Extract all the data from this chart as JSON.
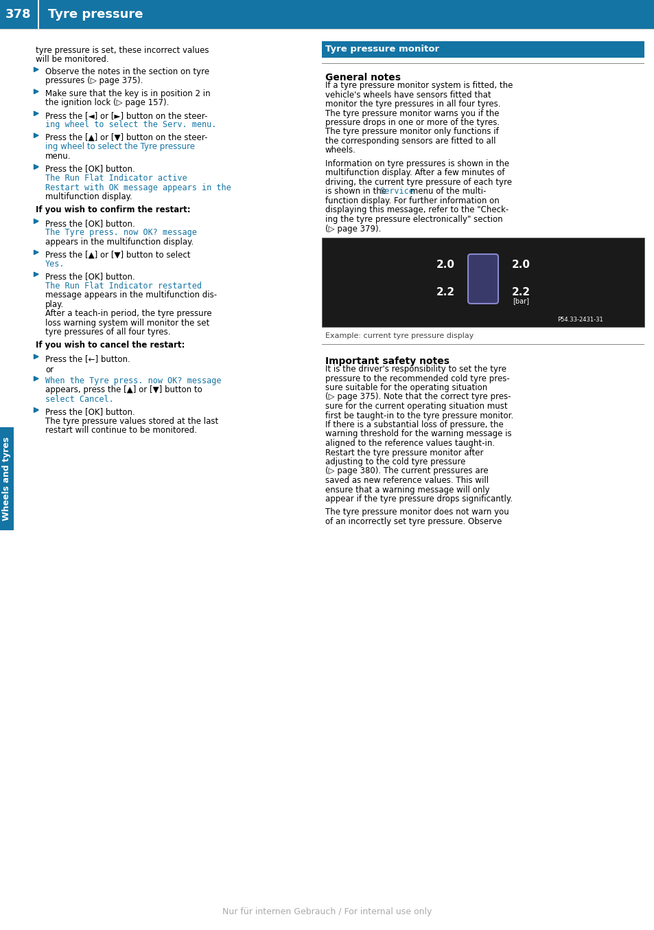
{
  "header_bg_color": "#1474a4",
  "header_text_color": "#ffffff",
  "header_page_num": "378",
  "header_title": "Tyre pressure",
  "sidebar_bg_color": "#1474a4",
  "sidebar_text": "Wheels and tyres",
  "sidebar_text_color": "#ffffff",
  "page_bg_color": "#ffffff",
  "body_text_color": "#000000",
  "teal_color": "#1474a4",
  "footer_text": "Nur für internen Gebrauch / For internal use only",
  "footer_color": "#aaaaaa",
  "left_column_text": [
    [
      "normal",
      "tyre pressure is set, these incorrect values will be monitored."
    ],
    [
      "bullet",
      "Observe the notes in the section on tyre pressures (▷ page 375)."
    ],
    [
      "bullet",
      "Make sure that the key is in position {bold}2{/bold} in the ignition lock (▷ page 157)."
    ],
    [
      "bullet",
      "Press the {box}◄{/box} or {box}►{/box} button on the steering wheel to select the {mono}Serv.{/mono} menu."
    ],
    [
      "bullet",
      "Press the {box}▲{/box} or {box}▼{/box} button on the steering wheel to select the {teal}Tyre pressure{/teal} menu."
    ],
    [
      "bullet",
      "Press the {box}OK{/box} button.\nThe {mono}Run Flat Indicator active\nRestart with OK{/mono} message appears in the multifunction display."
    ],
    [
      "bold_heading",
      "If you wish to confirm the restart:"
    ],
    [
      "bullet",
      "Press the {box}OK{/box} button.\nThe {teal}Tyre press. now OK?{/teal} message appears in the multifunction display."
    ],
    [
      "bullet",
      "Press the {box}▲{/box} or {box}▼{/box} button to select {teal}Yes{/teal}."
    ],
    [
      "bullet",
      "Press the {box}OK{/box} button.\nThe {teal}Run Flat Indicator restarted{/teal} message appears in the multifunction display.\nAfter a teach-in period, the tyre pressure loss warning system will monitor the set tyre pressures of all four tyres."
    ],
    [
      "bold_heading",
      "If you wish to cancel the restart:"
    ],
    [
      "bullet",
      "Press the {box}↩{/box} button."
    ],
    [
      "normal",
      "or"
    ],
    [
      "bullet",
      "When the {teal}Tyre press. now OK?{/teal} message appears, press the {box}▲{/box} or {box}▼{/box} button to select {teal}Cancel{/teal}."
    ],
    [
      "bullet",
      "Press the {box}OK{/box} button.\nThe tyre pressure values stored at the last restart will continue to be monitored."
    ]
  ],
  "right_column_sections": [
    {
      "type": "section_header",
      "text": "Tyre pressure monitor"
    },
    {
      "type": "subsection_header",
      "text": "General notes"
    },
    {
      "type": "paragraph",
      "text": "If a tyre pressure monitor system is fitted, the vehicle's wheels have sensors fitted that monitor the tyre pressures in all four tyres. The tyre pressure monitor warns you if the pressure drops in one or more of the tyres. The tyre pressure monitor only functions if the corresponding sensors are fitted to all wheels."
    },
    {
      "type": "paragraph",
      "text": "Information on tyre pressures is shown in the multifunction display. After a few minutes of driving, the current tyre pressure of each tyre is shown in the {mono}Service{/mono} menu of the multi-function display. For further information on displaying this message, refer to the \"Check-ing the tyre pressure electronically\" section (▷ page 379)."
    },
    {
      "type": "image_placeholder",
      "caption": "Example: current tyre pressure display"
    },
    {
      "type": "subsection_header",
      "text": "Important safety notes"
    },
    {
      "type": "paragraph",
      "text": "It is the driver's responsibility to set the tyre pressure to the recommended cold tyre pressure suitable for the operating situation (▷ page 375). Note that the correct tyre pressure for the current operating situation must first be taught-in to the tyre pressure monitor. If there is a substantial loss of pressure, the warning threshold for the warning message is aligned to the reference values taught-in. Restart the tyre pressure monitor after adjusting to the cold tyre pressure (▷ page 380). The current pressures are saved as new reference values. This will ensure that a warning message will only appear if the tyre pressure drops significantly."
    },
    {
      "type": "paragraph",
      "text": "The tyre pressure monitor does not warn you of an incorrectly set tyre pressure. Observe"
    }
  ]
}
